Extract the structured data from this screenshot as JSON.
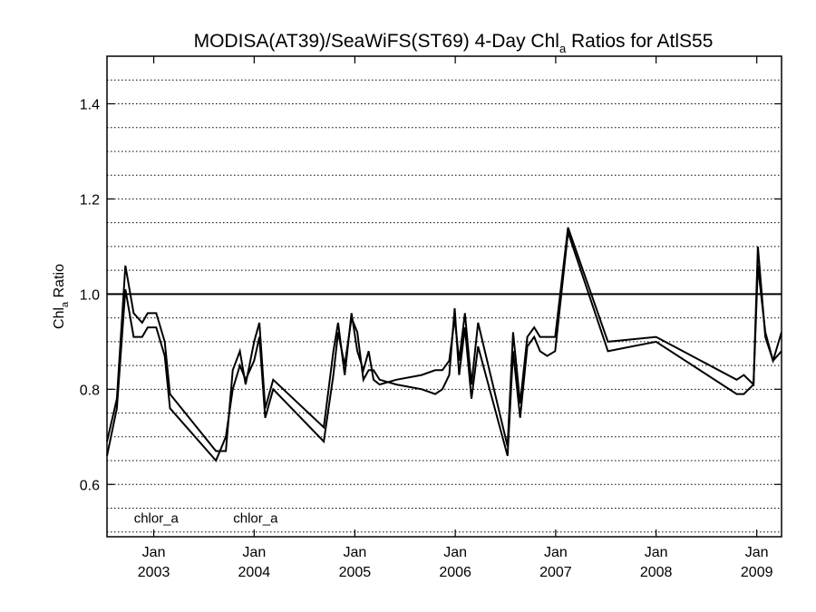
{
  "chart_data": {
    "type": "line",
    "title": {
      "prefix": "MODISA(AT39)/SeaWiFS(ST69) 4-Day Chl",
      "subscript": "a",
      "suffix": " Ratios for AtlS55"
    },
    "ylabel": {
      "prefix": "Chl",
      "subscript": "a",
      "suffix": " Ratio"
    },
    "xlabel": "",
    "ylim": [
      0.49,
      1.5
    ],
    "xlim": [
      "2002-07-15",
      "2009-04-01"
    ],
    "y_ticks": [
      {
        "value": 0.6,
        "label": "0.6"
      },
      {
        "value": 0.8,
        "label": "0.8"
      },
      {
        "value": 1.0,
        "label": "1.0"
      },
      {
        "value": 1.2,
        "label": "1.2"
      },
      {
        "value": 1.4,
        "label": "1.4"
      }
    ],
    "x_ticks": [
      {
        "value": "2003-01-01",
        "month": "Jan",
        "year": "2003"
      },
      {
        "value": "2004-01-01",
        "month": "Jan",
        "year": "2004"
      },
      {
        "value": "2005-01-01",
        "month": "Jan",
        "year": "2005"
      },
      {
        "value": "2006-01-01",
        "month": "Jan",
        "year": "2006"
      },
      {
        "value": "2007-01-01",
        "month": "Jan",
        "year": "2007"
      },
      {
        "value": "2008-01-01",
        "month": "Jan",
        "year": "2008"
      },
      {
        "value": "2009-01-01",
        "month": "Jan",
        "year": "2009"
      }
    ],
    "dotted_grid_y": [
      0.5,
      0.55,
      0.6,
      0.65,
      0.7,
      0.75,
      0.8,
      0.85,
      0.9,
      0.95,
      1.05,
      1.1,
      1.15,
      1.2,
      1.25,
      1.3,
      1.35,
      1.4,
      1.45
    ],
    "reference_line_y": 1.0,
    "annotations": [
      {
        "text": "chlor_a",
        "x": "2003-01-10",
        "y": 0.52
      },
      {
        "text": "chlor_a",
        "x": "2004-01-06",
        "y": 0.52
      }
    ],
    "series": [
      {
        "color": "#000000",
        "points": [
          [
            "2002-07-15",
            0.66
          ],
          [
            "2002-08-20",
            0.76
          ],
          [
            "2002-09-20",
            1.01
          ],
          [
            "2002-10-20",
            0.91
          ],
          [
            "2002-11-20",
            0.91
          ],
          [
            "2002-12-10",
            0.93
          ],
          [
            "2003-01-10",
            0.93
          ],
          [
            "2003-02-10",
            0.87
          ],
          [
            "2003-03-01",
            0.76
          ],
          [
            "2003-08-15",
            0.65
          ],
          [
            "2003-09-20",
            0.7
          ],
          [
            "2003-10-15",
            0.8
          ],
          [
            "2003-11-10",
            0.85
          ],
          [
            "2003-12-01",
            0.82
          ],
          [
            "2004-01-01",
            0.86
          ],
          [
            "2004-01-20",
            0.91
          ],
          [
            "2004-02-10",
            0.74
          ],
          [
            "2004-03-10",
            0.8
          ],
          [
            "2004-09-10",
            0.69
          ],
          [
            "2004-10-15",
            0.83
          ],
          [
            "2004-11-01",
            0.92
          ],
          [
            "2004-11-25",
            0.85
          ],
          [
            "2004-12-20",
            0.95
          ],
          [
            "2005-01-10",
            0.92
          ],
          [
            "2005-02-01",
            0.82
          ],
          [
            "2005-02-20",
            0.84
          ],
          [
            "2005-03-10",
            0.84
          ],
          [
            "2005-04-01",
            0.82
          ],
          [
            "2005-06-01",
            0.81
          ],
          [
            "2005-09-01",
            0.8
          ],
          [
            "2005-10-20",
            0.79
          ],
          [
            "2005-11-15",
            0.8
          ],
          [
            "2005-12-10",
            0.83
          ],
          [
            "2005-12-30",
            0.97
          ],
          [
            "2006-01-15",
            0.83
          ],
          [
            "2006-02-05",
            0.93
          ],
          [
            "2006-03-01",
            0.78
          ],
          [
            "2006-03-25",
            0.89
          ],
          [
            "2006-07-10",
            0.66
          ],
          [
            "2006-07-30",
            0.88
          ],
          [
            "2006-08-25",
            0.74
          ],
          [
            "2006-09-20",
            0.89
          ],
          [
            "2006-10-15",
            0.91
          ],
          [
            "2006-11-05",
            0.88
          ],
          [
            "2006-12-01",
            0.87
          ],
          [
            "2006-12-30",
            0.88
          ],
          [
            "2007-02-15",
            1.13
          ],
          [
            "2007-07-10",
            0.88
          ],
          [
            "2008-01-01",
            0.9
          ],
          [
            "2008-10-20",
            0.79
          ],
          [
            "2008-11-15",
            0.79
          ],
          [
            "2008-12-20",
            0.81
          ],
          [
            "2009-01-05",
            1.1
          ],
          [
            "2009-02-01",
            0.91
          ],
          [
            "2009-03-01",
            0.86
          ],
          [
            "2009-04-01",
            0.92
          ]
        ]
      },
      {
        "color": "#000000",
        "points": [
          [
            "2002-07-15",
            0.69
          ],
          [
            "2002-08-20",
            0.78
          ],
          [
            "2002-09-20",
            1.06
          ],
          [
            "2002-10-20",
            0.96
          ],
          [
            "2002-11-20",
            0.94
          ],
          [
            "2002-12-10",
            0.96
          ],
          [
            "2003-01-10",
            0.96
          ],
          [
            "2003-02-10",
            0.9
          ],
          [
            "2003-03-01",
            0.79
          ],
          [
            "2003-08-15",
            0.67
          ],
          [
            "2003-09-20",
            0.67
          ],
          [
            "2003-10-15",
            0.84
          ],
          [
            "2003-11-10",
            0.88
          ],
          [
            "2003-12-01",
            0.81
          ],
          [
            "2004-01-01",
            0.9
          ],
          [
            "2004-01-20",
            0.94
          ],
          [
            "2004-02-10",
            0.76
          ],
          [
            "2004-03-10",
            0.82
          ],
          [
            "2004-09-10",
            0.72
          ],
          [
            "2004-10-15",
            0.88
          ],
          [
            "2004-11-01",
            0.94
          ],
          [
            "2004-11-25",
            0.83
          ],
          [
            "2004-12-20",
            0.96
          ],
          [
            "2005-01-10",
            0.88
          ],
          [
            "2005-02-01",
            0.84
          ],
          [
            "2005-02-20",
            0.88
          ],
          [
            "2005-03-10",
            0.82
          ],
          [
            "2005-04-01",
            0.81
          ],
          [
            "2005-06-01",
            0.82
          ],
          [
            "2005-09-01",
            0.83
          ],
          [
            "2005-10-20",
            0.84
          ],
          [
            "2005-11-15",
            0.84
          ],
          [
            "2005-12-10",
            0.86
          ],
          [
            "2005-12-30",
            0.95
          ],
          [
            "2006-01-15",
            0.86
          ],
          [
            "2006-02-05",
            0.96
          ],
          [
            "2006-03-01",
            0.81
          ],
          [
            "2006-03-25",
            0.94
          ],
          [
            "2006-07-10",
            0.68
          ],
          [
            "2006-07-30",
            0.92
          ],
          [
            "2006-08-25",
            0.77
          ],
          [
            "2006-09-20",
            0.91
          ],
          [
            "2006-10-15",
            0.93
          ],
          [
            "2006-11-05",
            0.91
          ],
          [
            "2006-12-01",
            0.91
          ],
          [
            "2006-12-30",
            0.91
          ],
          [
            "2007-02-15",
            1.14
          ],
          [
            "2007-07-10",
            0.9
          ],
          [
            "2008-01-01",
            0.91
          ],
          [
            "2008-10-20",
            0.82
          ],
          [
            "2008-11-15",
            0.83
          ],
          [
            "2008-12-20",
            0.81
          ],
          [
            "2009-01-05",
            1.06
          ],
          [
            "2009-02-01",
            0.92
          ],
          [
            "2009-03-01",
            0.86
          ],
          [
            "2009-04-01",
            0.88
          ]
        ]
      }
    ]
  }
}
